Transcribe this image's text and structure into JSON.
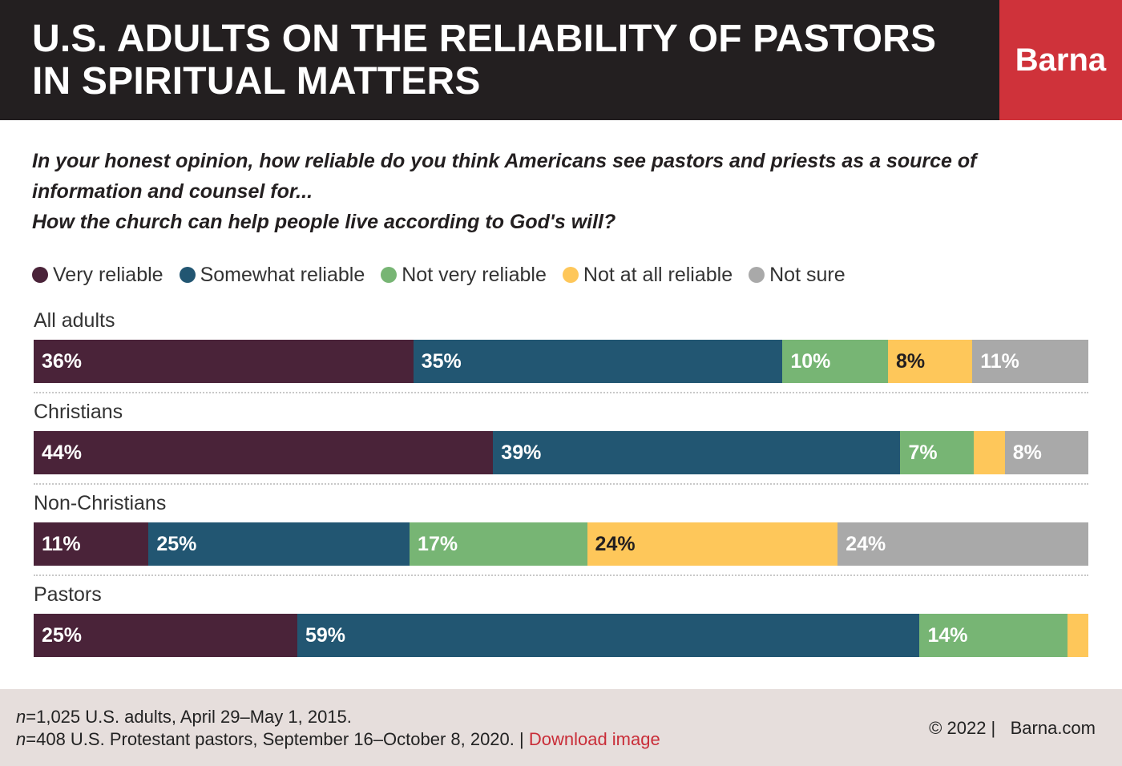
{
  "header": {
    "title_line1": "U.S. ADULTS ON THE RELIABILITY OF PASTORS",
    "title_line2": "IN SPIRITUAL MATTERS",
    "brand": "Barna"
  },
  "question": {
    "line1": "In your honest opinion, how reliable do you think Americans see pastors and priests as a source of information and counsel for...",
    "line2": "How the church can help people live according to God's will?"
  },
  "colors": {
    "very_reliable": "#4a2339",
    "somewhat_reliable": "#225672",
    "not_very_reliable": "#77b574",
    "not_at_all_reliable": "#fec75a",
    "not_sure": "#a9a9a9",
    "header_bg": "#231f20",
    "brand_bg": "#cf323a",
    "footer_bg": "#e6dedc",
    "link": "#c92d38"
  },
  "chart_data": {
    "type": "bar",
    "orientation": "horizontal",
    "stacked": true,
    "title": "U.S. ADULTS ON THE RELIABILITY OF PASTORS IN SPIRITUAL MATTERS",
    "xlim": [
      0,
      100
    ],
    "legend_position": "top",
    "categories": [
      "All adults",
      "Christians",
      "Non-Christians",
      "Pastors"
    ],
    "series": [
      {
        "name": "Very reliable",
        "color": "#4a2339",
        "text": "dark",
        "values": [
          36,
          44,
          11,
          25
        ],
        "labels": [
          "36%",
          "44%",
          "11%",
          "25%"
        ]
      },
      {
        "name": "Somewhat reliable",
        "color": "#225672",
        "text": "dark",
        "values": [
          35,
          39,
          25,
          59
        ],
        "labels": [
          "35%",
          "39%",
          "25%",
          "59%"
        ]
      },
      {
        "name": "Not very reliable",
        "color": "#77b574",
        "text": "dark",
        "values": [
          10,
          7,
          17,
          14
        ],
        "labels": [
          "10%",
          "7%",
          "17%",
          "14%"
        ]
      },
      {
        "name": "Not at all reliable",
        "color": "#fec75a",
        "text": "light",
        "values": [
          8,
          3,
          24,
          2
        ],
        "labels": [
          "8%",
          "",
          "24%",
          ""
        ]
      },
      {
        "name": "Not sure",
        "color": "#a9a9a9",
        "text": "dark",
        "values": [
          11,
          8,
          24,
          0
        ],
        "labels": [
          "11%",
          "8%",
          "24%",
          ""
        ]
      }
    ]
  },
  "footer": {
    "n1_italic": "n",
    "note1": "=1,025 U.S. adults, April 29–May 1, 2015.",
    "n2_italic": "n",
    "note2": "=408 U.S. Protestant pastors, September 16–October 8, 2020. |",
    "download": "Download image",
    "copyright": "© 2022 |",
    "site": "Barna.com"
  }
}
